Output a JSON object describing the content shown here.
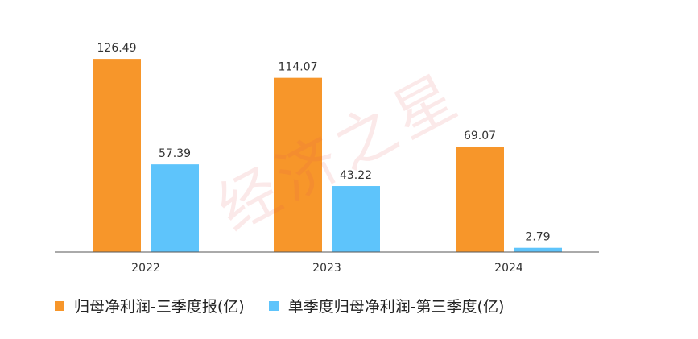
{
  "colors": {
    "series_1": "#f7962a",
    "series_2": "#5ec4fb",
    "axis": "#555555",
    "label": "#333333",
    "watermark": "#e25656"
  },
  "watermark": {
    "text": "经济之星"
  },
  "chart_data": {
    "type": "bar",
    "categories": [
      "2022",
      "2023",
      "2024"
    ],
    "series": [
      {
        "name": "归母净利润-三季度报(亿)",
        "values": [
          126.49,
          114.07,
          69.07
        ]
      },
      {
        "name": "单季度归母净利润-第三季度(亿)",
        "values": [
          57.39,
          43.22,
          2.79
        ]
      }
    ],
    "value_labels": [
      [
        "126.49",
        "114.07",
        "69.07"
      ],
      [
        "57.39",
        "43.22",
        "2.79"
      ]
    ],
    "ylim": [
      0,
      145
    ],
    "grid": false,
    "legend_position": "bottom-left"
  }
}
